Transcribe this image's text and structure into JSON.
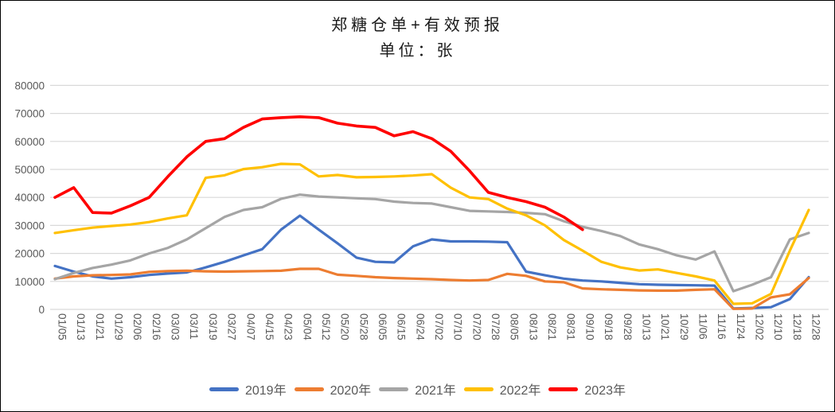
{
  "header": {
    "title": "郑糖仓单+有效预报",
    "subtitle": "单位：张"
  },
  "colors": {
    "grid": "#d9d9d9",
    "axis_text": "#595959",
    "title_text": "#1a1a1a",
    "frame_border": "#000000"
  },
  "chart_data": {
    "type": "line",
    "title": "郑糖仓单+有效预报",
    "subtitle": "单位：张",
    "ylabel": "张",
    "ylim": [
      0,
      80000
    ],
    "ytick_interval": 10000,
    "yticks": [
      0,
      10000,
      20000,
      30000,
      40000,
      50000,
      60000,
      70000,
      80000
    ],
    "grid": true,
    "legend_position": "bottom",
    "x_label_rotation_deg": 90,
    "categories": [
      "01/05",
      "01/13",
      "01/21",
      "01/29",
      "02/06",
      "02/16",
      "03/03",
      "03/11",
      "03/19",
      "03/27",
      "04/07",
      "04/15",
      "04/23",
      "05/04",
      "05/12",
      "05/20",
      "05/28",
      "06/05",
      "06/15",
      "06/24",
      "07/02",
      "07/10",
      "07/20",
      "07/28",
      "08/05",
      "08/13",
      "08/21",
      "08/31",
      "09/10",
      "09/18",
      "09/28",
      "10/13",
      "10/21",
      "10/29",
      "11/06",
      "11/16",
      "11/24",
      "12/02",
      "12/10",
      "12/18",
      "12/28"
    ],
    "series": [
      {
        "name": "2019年",
        "color": "#4472C4",
        "values": [
          15500,
          13500,
          11800,
          11000,
          11500,
          12300,
          12800,
          13200,
          15000,
          17000,
          19300,
          21500,
          28500,
          33500,
          28500,
          23600,
          18500,
          17000,
          16800,
          22500,
          25000,
          24300,
          24300,
          24200,
          24000,
          13500,
          12200,
          11000,
          10300,
          10000,
          9500,
          9000,
          8800,
          8700,
          8600,
          8500,
          300,
          500,
          800,
          3700,
          11500
        ]
      },
      {
        "name": "2020年",
        "color": "#ED7D31",
        "values": [
          11000,
          11800,
          12200,
          12300,
          12500,
          13400,
          13700,
          13800,
          13600,
          13500,
          13600,
          13700,
          13800,
          14500,
          14500,
          12400,
          12000,
          11500,
          11200,
          11000,
          10800,
          10500,
          10300,
          10500,
          12700,
          12000,
          10000,
          9700,
          7500,
          7200,
          7000,
          6800,
          6700,
          6700,
          7000,
          7200,
          200,
          300,
          4300,
          5400,
          11200
        ]
      },
      {
        "name": "2021年",
        "color": "#A5A5A5",
        "values": [
          10800,
          13000,
          14800,
          16000,
          17500,
          20000,
          22000,
          25000,
          29000,
          33000,
          35500,
          36500,
          39500,
          41000,
          40300,
          40000,
          39700,
          39400,
          38500,
          38000,
          37800,
          36500,
          35200,
          35000,
          34800,
          34500,
          34000,
          31500,
          29500,
          28000,
          26200,
          23200,
          21500,
          19300,
          17800,
          20700,
          6500,
          8800,
          11500,
          25000,
          27300
        ]
      },
      {
        "name": "2022年",
        "color": "#FFC000",
        "values": [
          27300,
          28300,
          29200,
          29800,
          30300,
          31200,
          32500,
          33600,
          47000,
          47900,
          50100,
          50800,
          52000,
          51800,
          47500,
          48000,
          47200,
          47300,
          47500,
          47800,
          48300,
          43500,
          40000,
          39400,
          36000,
          33600,
          30000,
          24800,
          21000,
          17000,
          15000,
          13900,
          14300,
          13000,
          11800,
          10300,
          2000,
          2200,
          5500,
          21000,
          35500
        ]
      },
      {
        "name": "2023年",
        "color": "#FF0000",
        "values": [
          40000,
          43500,
          34600,
          34400,
          37000,
          40000,
          47500,
          54500,
          60000,
          61000,
          65000,
          68000,
          68500,
          68800,
          68500,
          66500,
          65500,
          65000,
          62000,
          63500,
          61000,
          56500,
          49500,
          41800,
          40000,
          38500,
          36500,
          33000,
          28500,
          null,
          null,
          null,
          null,
          null,
          null,
          null,
          null,
          null,
          null,
          null,
          null
        ]
      }
    ]
  }
}
